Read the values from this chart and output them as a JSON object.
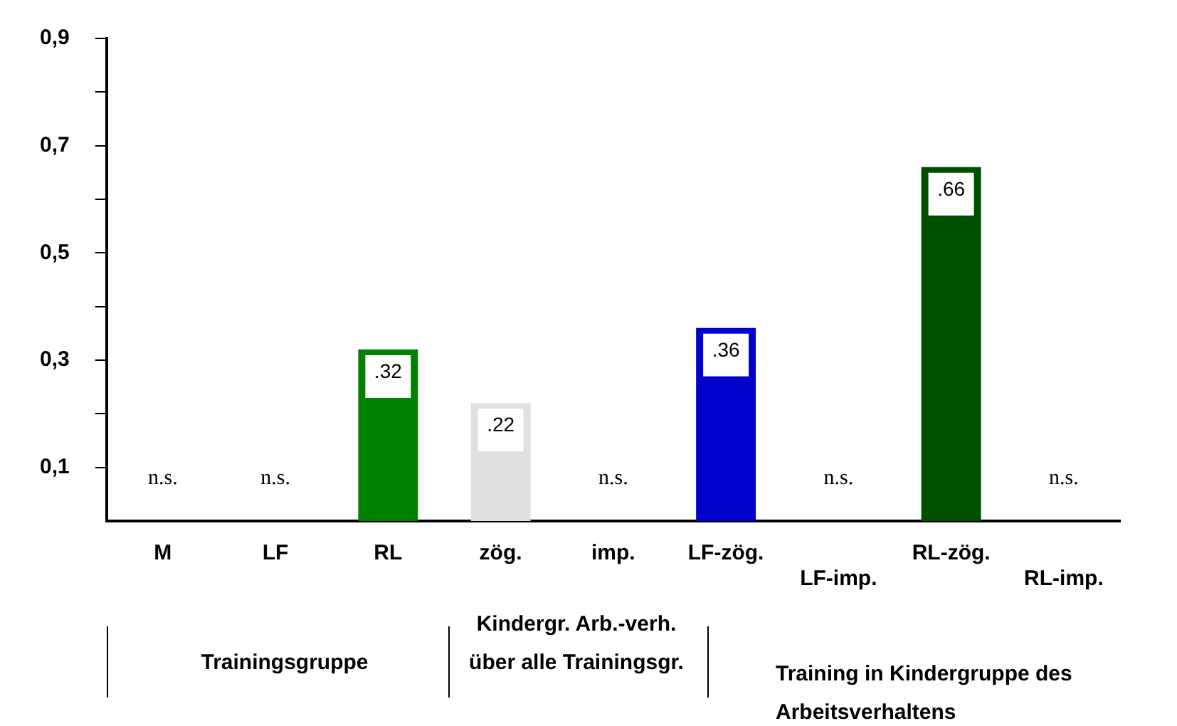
{
  "chart_data": {
    "type": "bar",
    "categories": [
      "M",
      "LF",
      "RL",
      "zög.",
      "imp.",
      "LF-zög.",
      "LF-imp.",
      "RL-zög.",
      "RL-imp."
    ],
    "values": [
      null,
      null,
      0.32,
      0.22,
      null,
      0.36,
      null,
      0.66,
      null
    ],
    "colors": [
      "#008000",
      "#008000",
      "#008000",
      "#e0e0e0",
      "#e0e0e0",
      "#0000cc",
      "#0000cc",
      "#005000",
      "#005000"
    ],
    "value_labels": [
      "n.s.",
      "n.s.",
      ".32",
      ".22",
      "n.s.",
      ".36",
      "n.s.",
      ".66",
      "n.s."
    ],
    "ylim": [
      0,
      0.9
    ],
    "yticks": [
      {
        "value": 0.1,
        "label": "0,1"
      },
      {
        "value": 0.2,
        "label": null
      },
      {
        "value": 0.3,
        "label": "0,3"
      },
      {
        "value": 0.4,
        "label": null
      },
      {
        "value": 0.5,
        "label": "0,5"
      },
      {
        "value": 0.6,
        "label": null
      },
      {
        "value": 0.7,
        "label": "0,7"
      },
      {
        "value": 0.8,
        "label": null
      },
      {
        "value": 0.9,
        "label": "0,9"
      }
    ],
    "grid": false,
    "legend": false,
    "annotations": [
      "Trainingsgruppe",
      "Kindergr. Arb.-verh. über alle Trainingsgr.",
      "Training in Kindergruppe des Arbeitsverhaltens"
    ]
  }
}
